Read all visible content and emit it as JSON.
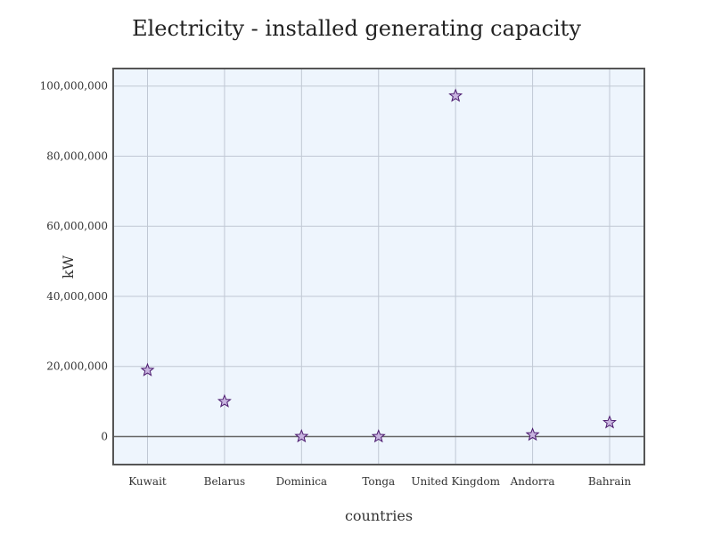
{
  "chart_data": {
    "type": "scatter",
    "title": "Electricity - installed generating capacity",
    "xlabel": "countries",
    "ylabel": "kW",
    "categories": [
      "Kuwait",
      "Belarus",
      "Dominica",
      "Tonga",
      "United Kingdom",
      "Andorra",
      "Bahrain"
    ],
    "series": [
      {
        "values": [
          18900000,
          10000000,
          30000,
          10000,
          97200000,
          500000,
          4000000
        ]
      }
    ],
    "ylim": [
      -8000000,
      105000000
    ],
    "yticks": [
      0,
      20000000,
      40000000,
      60000000,
      80000000,
      100000000
    ],
    "ytick_labels": [
      "0",
      "20,000,000",
      "40,000,000",
      "60,000,000",
      "80,000,000",
      "100,000,000"
    ],
    "grid": true,
    "marker": "star",
    "colors": {
      "plot_bg": "#eef5fd",
      "grid": "#c0c8d4",
      "zero_line": "#666666",
      "frame": "#555555",
      "marker_fill": "#c8b4e0",
      "marker_stroke": "#4b1a6e"
    }
  }
}
